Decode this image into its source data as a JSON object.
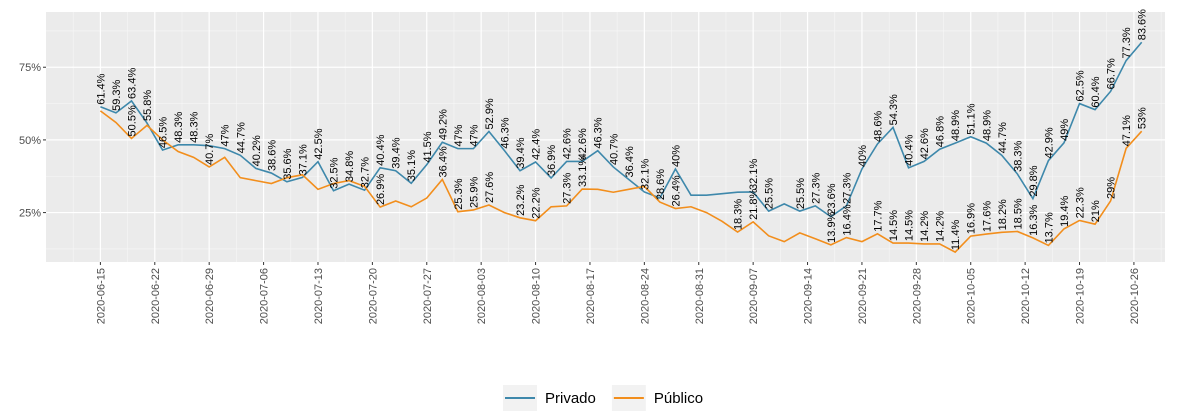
{
  "chart_data": {
    "type": "line",
    "x": [
      "2020-06-15",
      "2020-06-17",
      "2020-06-19",
      "2020-06-21",
      "2020-06-23",
      "2020-06-25",
      "2020-06-27",
      "2020-06-29",
      "2020-07-01",
      "2020-07-03",
      "2020-07-05",
      "2020-07-07",
      "2020-07-09",
      "2020-07-11",
      "2020-07-13",
      "2020-07-15",
      "2020-07-17",
      "2020-07-19",
      "2020-07-21",
      "2020-07-23",
      "2020-07-25",
      "2020-07-27",
      "2020-07-29",
      "2020-07-31",
      "2020-08-02",
      "2020-08-04",
      "2020-08-06",
      "2020-08-08",
      "2020-08-10",
      "2020-08-12",
      "2020-08-14",
      "2020-08-16",
      "2020-08-18",
      "2020-08-20",
      "2020-08-22",
      "2020-08-24",
      "2020-08-26",
      "2020-08-28",
      "2020-08-30",
      "2020-09-01",
      "2020-09-03",
      "2020-09-05",
      "2020-09-07",
      "2020-09-09",
      "2020-09-11",
      "2020-09-13",
      "2020-09-15",
      "2020-09-17",
      "2020-09-19",
      "2020-09-21",
      "2020-09-23",
      "2020-09-25",
      "2020-09-27",
      "2020-09-29",
      "2020-10-01",
      "2020-10-03",
      "2020-10-05",
      "2020-10-07",
      "2020-10-09",
      "2020-10-11",
      "2020-10-13",
      "2020-10-15",
      "2020-10-17",
      "2020-10-19",
      "2020-10-21",
      "2020-10-23",
      "2020-10-25",
      "2020-10-27"
    ],
    "series": [
      {
        "name": "Privado",
        "color": "#3e88ab",
        "values": [
          61.4,
          59.3,
          63.4,
          55.8,
          46.5,
          48.3,
          48.3,
          48,
          47,
          44.7,
          40.2,
          38.6,
          35.6,
          37.1,
          42.5,
          32.5,
          34.8,
          32.7,
          40.4,
          39.4,
          35.1,
          41.5,
          49.2,
          47,
          47,
          52.9,
          46.3,
          39.4,
          42.4,
          36.9,
          42.6,
          42.6,
          46.3,
          40.7,
          36.4,
          32.1,
          30,
          40,
          31,
          31,
          31.5,
          32,
          32.1,
          25.5,
          28,
          25.5,
          27.3,
          23.6,
          27.3,
          40,
          48.6,
          54.3,
          40.4,
          42.6,
          46.8,
          48.9,
          51.1,
          48.9,
          44.7,
          38.3,
          29.8,
          42.9,
          49,
          62.5,
          60.4,
          66.7,
          77.3,
          83.6
        ],
        "value_labels": [
          "61.4%",
          "59.3%",
          "63.4%",
          "55.8%",
          "46.5%",
          "48.3%",
          "48.3%",
          null,
          "47%",
          "44.7%",
          "40.2%",
          "38.6%",
          "35.6%",
          "37.1%",
          "42.5%",
          "32.5%",
          "34.8%",
          "32.7%",
          "40.4%",
          "39.4%",
          "35.1%",
          "41.5%",
          "49.2%",
          "47%",
          "47%",
          "52.9%",
          "46.3%",
          "39.4%",
          "42.4%",
          "36.9%",
          "42.6%",
          "42.6%",
          "46.3%",
          "40.7%",
          "36.4%",
          "32.1%",
          null,
          "40%",
          null,
          null,
          null,
          null,
          "32.1%",
          "25.5%",
          null,
          "25.5%",
          "27.3%",
          "23.6%",
          "27.3%",
          "40%",
          "48.6%",
          "54.3%",
          "40.4%",
          "42.6%",
          "46.8%",
          "48.9%",
          "51.1%",
          "48.9%",
          "44.7%",
          "38.3%",
          "29.8%",
          "42.9%",
          "49%",
          "62.5%",
          "60.4%",
          "66.7%",
          "77.3%",
          "83.6%"
        ]
      },
      {
        "name": "Público",
        "color": "#f28e1c",
        "values": [
          60,
          56,
          50.5,
          55,
          50,
          46,
          44,
          40.7,
          44,
          37,
          36,
          35,
          37,
          38,
          33,
          35,
          36,
          34,
          26.9,
          29,
          27,
          30,
          36.4,
          25.3,
          25.9,
          27.6,
          25,
          23.2,
          22.2,
          27,
          27.3,
          33.1,
          33,
          32,
          33,
          34,
          28.6,
          26.4,
          27,
          25,
          22,
          18.3,
          21.8,
          17,
          15,
          18,
          16,
          13.9,
          16.4,
          15,
          17.7,
          14.5,
          14.5,
          14.2,
          14.2,
          11.4,
          16.9,
          17.6,
          18.2,
          18.5,
          16.3,
          13.7,
          19.4,
          22.3,
          21,
          29,
          47.1,
          53
        ],
        "value_labels": [
          null,
          null,
          "50.5%",
          null,
          null,
          null,
          null,
          "40.7%",
          null,
          null,
          null,
          null,
          null,
          null,
          null,
          null,
          null,
          null,
          "26.9%",
          null,
          null,
          null,
          "36.4%",
          "25.3%",
          "25.9%",
          "27.6%",
          null,
          "23.2%",
          "22.2%",
          null,
          "27.3%",
          "33.1%",
          null,
          null,
          null,
          null,
          "28.6%",
          "26.4%",
          null,
          null,
          null,
          "18.3%",
          "21.8%",
          null,
          null,
          null,
          null,
          "13.9%",
          "16.4%",
          null,
          "17.7%",
          "14.5%",
          "14.5%",
          "14.2%",
          "14.2%",
          "11.4%",
          "16.9%",
          "17.6%",
          "18.2%",
          "18.5%",
          "16.3%",
          "13.7%",
          "19.4%",
          "22.3%",
          "21%",
          "29%",
          "47.1%",
          "53%"
        ]
      }
    ],
    "xlim": [
      "2020-06-08",
      "2020-10-30"
    ],
    "xticks": [
      "2020-06-15",
      "2020-06-22",
      "2020-06-29",
      "2020-07-06",
      "2020-07-13",
      "2020-07-20",
      "2020-07-27",
      "2020-08-03",
      "2020-08-10",
      "2020-08-17",
      "2020-08-24",
      "2020-08-31",
      "2020-09-07",
      "2020-09-14",
      "2020-09-21",
      "2020-09-28",
      "2020-10-05",
      "2020-10-12",
      "2020-10-19",
      "2020-10-26"
    ],
    "ylim": [
      8,
      94
    ],
    "yticks": [
      {
        "value": 25,
        "label": "25%"
      },
      {
        "value": 50,
        "label": "50%"
      },
      {
        "value": 75,
        "label": "75%"
      }
    ],
    "grid": true,
    "legend": "bottom"
  }
}
